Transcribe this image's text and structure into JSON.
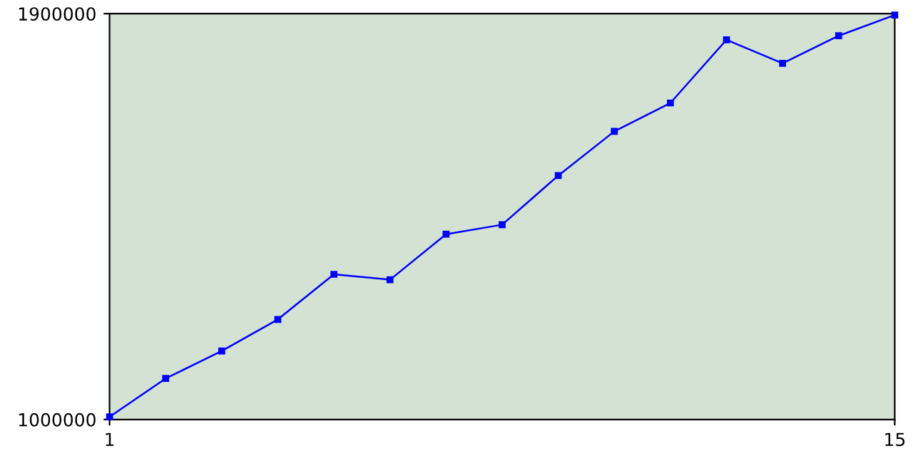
{
  "chart_data": {
    "type": "line",
    "x": [
      1,
      2,
      3,
      4,
      5,
      6,
      7,
      8,
      9,
      10,
      11,
      12,
      13,
      14,
      15
    ],
    "series": [
      {
        "color": "#0000ff",
        "values": [
          1006000,
          1091000,
          1152000,
          1222000,
          1322000,
          1310000,
          1411000,
          1432000,
          1541000,
          1639000,
          1702000,
          1842000,
          1790000,
          1851000,
          1897000
        ]
      }
    ],
    "xlim": [
      1,
      15
    ],
    "xticks": [
      1,
      15
    ],
    "ylim": [
      1000000,
      1900000
    ],
    "yticks": [
      1000000,
      1900000
    ],
    "grid": false,
    "legend": false,
    "marker": "square",
    "line_style": "solid"
  }
}
